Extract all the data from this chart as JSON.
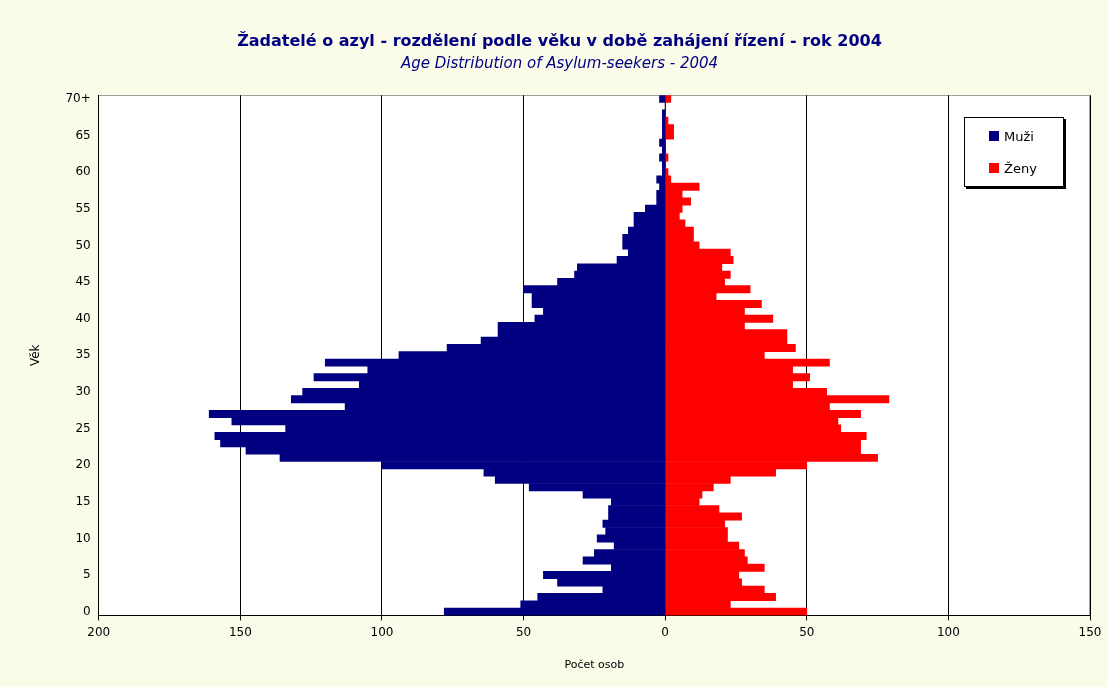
{
  "chart_data": {
    "type": "bar",
    "orientation": "horizontal",
    "stacked": true,
    "title": "Žadatelé o azyl - rozdělení podle věku v době zahájení řízení - rok 2004",
    "subtitle": "Age Distribution of Asylum-seekers - 2004",
    "xlabel": "Počet osob",
    "ylabel": "Věk",
    "categories": [
      "70+",
      null,
      null,
      null,
      null,
      "65",
      null,
      null,
      null,
      null,
      "60",
      null,
      null,
      null,
      null,
      "55",
      null,
      null,
      null,
      null,
      "50",
      null,
      null,
      null,
      null,
      "45",
      null,
      null,
      null,
      null,
      "40",
      null,
      null,
      null,
      null,
      "35",
      null,
      null,
      null,
      null,
      "30",
      null,
      null,
      null,
      null,
      "25",
      null,
      null,
      null,
      null,
      "20",
      null,
      null,
      null,
      null,
      "15",
      null,
      null,
      null,
      null,
      "10",
      null,
      null,
      null,
      null,
      "5",
      null,
      null,
      null,
      null,
      "0"
    ],
    "series": [
      {
        "name": "Muži",
        "color": "#000080",
        "values": [
          -2,
          0,
          -1,
          -1,
          -1,
          -1,
          -2,
          -1,
          -2,
          -1,
          -1,
          -3,
          -2,
          -3,
          -3,
          -7,
          -11,
          -11,
          -13,
          -15,
          -15,
          -13,
          -17,
          -31,
          -32,
          -38,
          -50,
          -47,
          -47,
          -43,
          -46,
          -59,
          -59,
          -65,
          -77,
          -94,
          -120,
          -105,
          -124,
          -108,
          -128,
          -132,
          -113,
          -161,
          -153,
          -134,
          -159,
          -157,
          -148,
          -136,
          -100,
          -64,
          -60,
          -48,
          -29,
          -19,
          -20,
          -20,
          -22,
          -21,
          -24,
          -18,
          -25,
          -29,
          -19,
          -43,
          -38,
          -22,
          -45,
          -51,
          -78
        ]
      },
      {
        "name": "Ženy",
        "color": "#ff0000",
        "values": [
          2,
          0,
          0,
          1,
          3,
          3,
          0,
          0,
          1,
          0,
          1,
          2,
          12,
          6,
          9,
          6,
          5,
          7,
          10,
          10,
          12,
          23,
          24,
          20,
          23,
          21,
          30,
          18,
          34,
          28,
          38,
          28,
          43,
          43,
          46,
          35,
          58,
          45,
          51,
          45,
          57,
          79,
          58,
          69,
          61,
          62,
          71,
          69,
          69,
          75,
          50,
          39,
          23,
          17,
          13,
          12,
          19,
          27,
          21,
          22,
          22,
          26,
          28,
          29,
          35,
          26,
          27,
          35,
          39,
          23,
          50
        ]
      }
    ],
    "xlim": [
      -200,
      150
    ],
    "xticks": [
      {
        "value": -200,
        "label": "200"
      },
      {
        "value": -150,
        "label": "150"
      },
      {
        "value": -100,
        "label": "100"
      },
      {
        "value": -50,
        "label": "50"
      },
      0,
      50,
      100,
      150
    ],
    "grid": "x",
    "legend": "top right"
  }
}
